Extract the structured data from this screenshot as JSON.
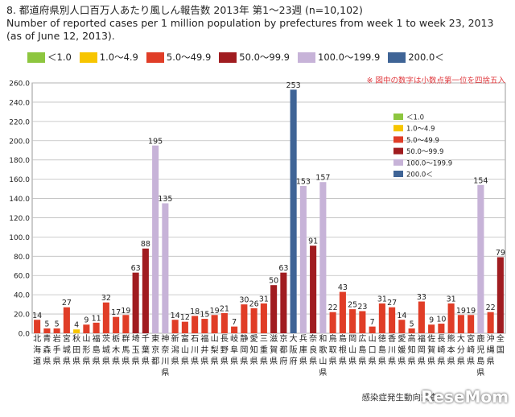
{
  "header": {
    "line1": "8.  都道府県別人口百万人あたり風しん報告数  2013年 第1〜23週  (n=10,102)",
    "line2": "Number of reported cases per 1 million population by prefectures from week 1 to week 23, 2013",
    "line3": "(as of June 12, 2013)."
  },
  "legend": [
    {
      "label": "＜1.0",
      "color": "#8dc63f"
    },
    {
      "label": "1.0〜4.9",
      "color": "#f7c500"
    },
    {
      "label": "5.0〜49.9",
      "color": "#e03d27"
    },
    {
      "label": "50.0〜99.9",
      "color": "#a01c20"
    },
    {
      "label": "100.0〜199.9",
      "color": "#c7b3d8"
    },
    {
      "label": "200.0＜",
      "color": "#3f6496"
    }
  ],
  "note": "※ 図中の数字は小数点第一位を四捨五入",
  "source": "感染症発生動向調査",
  "watermark": "ReseMom",
  "chart_data": {
    "type": "bar",
    "ylim": [
      0,
      260
    ],
    "yticks": [
      "0.0",
      "20.0",
      "40.0",
      "60.0",
      "80.0",
      "100.0",
      "120.0",
      "140.0",
      "160.0",
      "180.0",
      "200.0",
      "220.0",
      "240.0",
      "260.0"
    ],
    "grid": true,
    "legend_position": "inside-right",
    "categories": [
      "北海道",
      "青森県",
      "岩手県",
      "宮城県",
      "秋田県",
      "山形県",
      "福島県",
      "茨城県",
      "栃木県",
      "群馬県",
      "埼玉県",
      "千葉県",
      "東京都",
      "神奈川県",
      "新潟県",
      "富山県",
      "石川県",
      "福井県",
      "山梨県",
      "長野県",
      "岐阜県",
      "静岡県",
      "愛知県",
      "三重県",
      "滋賀県",
      "京都府",
      "大阪府",
      "兵庫県",
      "奈良県",
      "和歌山県",
      "鳥取県",
      "島根県",
      "岡山県",
      "広島県",
      "山口県",
      "徳島県",
      "香川県",
      "愛媛県",
      "高知県",
      "福岡県",
      "佐賀県",
      "長崎県",
      "熊本県",
      "大分県",
      "宮崎県",
      "鹿児島県",
      "沖縄県",
      "全国"
    ],
    "values": [
      14,
      5,
      5,
      27,
      4,
      9,
      11,
      32,
      17,
      19,
      63,
      88,
      195,
      135,
      14,
      12,
      18,
      15,
      19,
      21,
      7,
      30,
      26,
      31,
      50,
      63,
      253,
      153,
      91,
      157,
      22,
      43,
      25,
      23,
      7,
      31,
      27,
      14,
      5,
      33,
      9,
      10,
      31,
      19,
      19,
      154,
      22,
      79
    ],
    "bar_colors": [
      "#e03d27",
      "#e03d27",
      "#e03d27",
      "#e03d27",
      "#f7c500",
      "#e03d27",
      "#e03d27",
      "#e03d27",
      "#e03d27",
      "#e03d27",
      "#a01c20",
      "#a01c20",
      "#c7b3d8",
      "#c7b3d8",
      "#e03d27",
      "#e03d27",
      "#e03d27",
      "#e03d27",
      "#e03d27",
      "#e03d27",
      "#e03d27",
      "#e03d27",
      "#e03d27",
      "#e03d27",
      "#a01c20",
      "#a01c20",
      "#3f6496",
      "#c7b3d8",
      "#a01c20",
      "#c7b3d8",
      "#e03d27",
      "#e03d27",
      "#e03d27",
      "#e03d27",
      "#e03d27",
      "#e03d27",
      "#e03d27",
      "#e03d27",
      "#e03d27",
      "#e03d27",
      "#e03d27",
      "#e03d27",
      "#e03d27",
      "#e03d27",
      "#e03d27",
      "#c7b3d8",
      "#e03d27",
      "#a01c20"
    ]
  }
}
